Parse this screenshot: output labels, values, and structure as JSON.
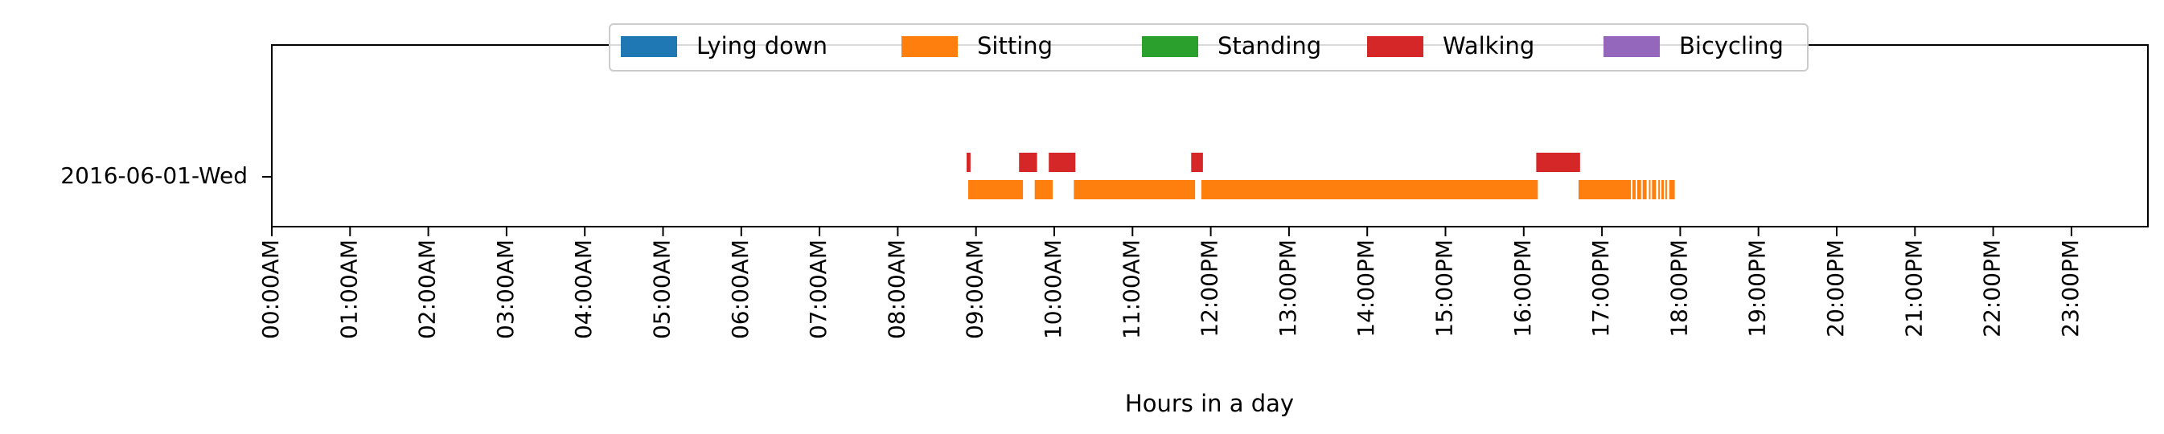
{
  "chart_data": {
    "type": "timeline",
    "title": "",
    "xlabel": "Hours in a day",
    "ylabel": "",
    "xlim": [
      0,
      24
    ],
    "row_label": "2016-06-01-Wed",
    "x_ticks": [
      "00:00AM",
      "01:00AM",
      "02:00AM",
      "03:00AM",
      "04:00AM",
      "05:00AM",
      "06:00AM",
      "07:00AM",
      "08:00AM",
      "09:00AM",
      "10:00AM",
      "11:00AM",
      "12:00PM",
      "13:00PM",
      "14:00PM",
      "15:00PM",
      "16:00PM",
      "17:00PM",
      "18:00PM",
      "19:00PM",
      "20:00PM",
      "21:00PM",
      "22:00PM",
      "23:00PM"
    ],
    "legend_position": "top-center",
    "grid": false,
    "series": [
      {
        "name": "Lying down",
        "color": "#1f77b4",
        "intervals": []
      },
      {
        "name": "Sitting",
        "color": "#ff7f0e",
        "intervals": [
          [
            8.9,
            9.6
          ],
          [
            9.75,
            9.98
          ],
          [
            10.25,
            11.8
          ],
          [
            11.88,
            16.18
          ],
          [
            16.7,
            17.37
          ],
          [
            17.39,
            17.43
          ],
          [
            17.45,
            17.5
          ],
          [
            17.52,
            17.57
          ],
          [
            17.6,
            17.62
          ],
          [
            17.64,
            17.69
          ],
          [
            17.72,
            17.74
          ],
          [
            17.76,
            17.79
          ],
          [
            17.81,
            17.83
          ],
          [
            17.86,
            17.93
          ]
        ]
      },
      {
        "name": "Standing",
        "color": "#2ca02c",
        "intervals": []
      },
      {
        "name": "Walking",
        "color": "#d62728",
        "intervals": [
          [
            8.88,
            8.93
          ],
          [
            9.55,
            9.78
          ],
          [
            9.93,
            10.27
          ],
          [
            11.75,
            11.9
          ],
          [
            16.16,
            16.72
          ]
        ]
      },
      {
        "name": "Bicycling",
        "color": "#9467bd",
        "intervals": []
      }
    ]
  }
}
